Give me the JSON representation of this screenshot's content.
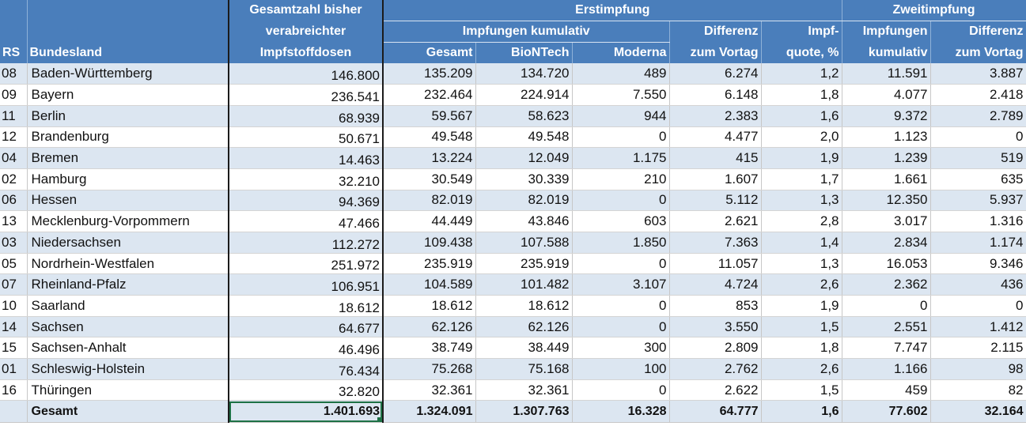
{
  "header": {
    "rs": "RS",
    "bundesland": "Bundesland",
    "total_line1": "Gesamtzahl bisher",
    "total_line2": "verabreichter",
    "total_line3": "Impfstoffdosen",
    "erst": "Erstimpfung",
    "erst_kumulativ": "Impfungen kumulativ",
    "gesamt": "Gesamt",
    "biontech": "BioNTech",
    "moderna": "Moderna",
    "diff_line1": "Differenz",
    "diff_line2": "zum Vortag",
    "quote_line1": "Impf-",
    "quote_line2": "quote, %",
    "zweit": "Zweitimpfung",
    "zweit_kum_line1": "Impfungen",
    "zweit_kum_line2": "kumulativ",
    "zweit_diff_line1": "Differenz",
    "zweit_diff_line2": "zum Vortag"
  },
  "rows": [
    {
      "rs": "08",
      "land": "Baden-Württemberg",
      "total": "146.800",
      "gesamt": "135.209",
      "biontech": "134.720",
      "moderna": "489",
      "diff": "6.274",
      "quote": "1,2",
      "zweit": "11.591",
      "zdiff": "3.887"
    },
    {
      "rs": "09",
      "land": "Bayern",
      "total": "236.541",
      "gesamt": "232.464",
      "biontech": "224.914",
      "moderna": "7.550",
      "diff": "6.148",
      "quote": "1,8",
      "zweit": "4.077",
      "zdiff": "2.418"
    },
    {
      "rs": "11",
      "land": "Berlin",
      "total": "68.939",
      "gesamt": "59.567",
      "biontech": "58.623",
      "moderna": "944",
      "diff": "2.383",
      "quote": "1,6",
      "zweit": "9.372",
      "zdiff": "2.789"
    },
    {
      "rs": "12",
      "land": "Brandenburg",
      "total": "50.671",
      "gesamt": "49.548",
      "biontech": "49.548",
      "moderna": "0",
      "diff": "4.477",
      "quote": "2,0",
      "zweit": "1.123",
      "zdiff": "0"
    },
    {
      "rs": "04",
      "land": "Bremen",
      "total": "14.463",
      "gesamt": "13.224",
      "biontech": "12.049",
      "moderna": "1.175",
      "diff": "415",
      "quote": "1,9",
      "zweit": "1.239",
      "zdiff": "519"
    },
    {
      "rs": "02",
      "land": "Hamburg",
      "total": "32.210",
      "gesamt": "30.549",
      "biontech": "30.339",
      "moderna": "210",
      "diff": "1.607",
      "quote": "1,7",
      "zweit": "1.661",
      "zdiff": "635"
    },
    {
      "rs": "06",
      "land": "Hessen",
      "total": "94.369",
      "gesamt": "82.019",
      "biontech": "82.019",
      "moderna": "0",
      "diff": "5.112",
      "quote": "1,3",
      "zweit": "12.350",
      "zdiff": "5.937"
    },
    {
      "rs": "13",
      "land": "Mecklenburg-Vorpommern",
      "total": "47.466",
      "gesamt": "44.449",
      "biontech": "43.846",
      "moderna": "603",
      "diff": "2.621",
      "quote": "2,8",
      "zweit": "3.017",
      "zdiff": "1.316"
    },
    {
      "rs": "03",
      "land": "Niedersachsen",
      "total": "112.272",
      "gesamt": "109.438",
      "biontech": "107.588",
      "moderna": "1.850",
      "diff": "7.363",
      "quote": "1,4",
      "zweit": "2.834",
      "zdiff": "1.174"
    },
    {
      "rs": "05",
      "land": "Nordrhein-Westfalen",
      "total": "251.972",
      "gesamt": "235.919",
      "biontech": "235.919",
      "moderna": "0",
      "diff": "11.057",
      "quote": "1,3",
      "zweit": "16.053",
      "zdiff": "9.346"
    },
    {
      "rs": "07",
      "land": "Rheinland-Pfalz",
      "total": "106.951",
      "gesamt": "104.589",
      "biontech": "101.482",
      "moderna": "3.107",
      "diff": "4.724",
      "quote": "2,6",
      "zweit": "2.362",
      "zdiff": "436"
    },
    {
      "rs": "10",
      "land": "Saarland",
      "total": "18.612",
      "gesamt": "18.612",
      "biontech": "18.612",
      "moderna": "0",
      "diff": "853",
      "quote": "1,9",
      "zweit": "0",
      "zdiff": "0"
    },
    {
      "rs": "14",
      "land": "Sachsen",
      "total": "64.677",
      "gesamt": "62.126",
      "biontech": "62.126",
      "moderna": "0",
      "diff": "3.550",
      "quote": "1,5",
      "zweit": "2.551",
      "zdiff": "1.412"
    },
    {
      "rs": "15",
      "land": "Sachsen-Anhalt",
      "total": "46.496",
      "gesamt": "38.749",
      "biontech": "38.449",
      "moderna": "300",
      "diff": "2.809",
      "quote": "1,8",
      "zweit": "7.747",
      "zdiff": "2.115"
    },
    {
      "rs": "01",
      "land": "Schleswig-Holstein",
      "total": "76.434",
      "gesamt": "75.268",
      "biontech": "75.168",
      "moderna": "100",
      "diff": "2.762",
      "quote": "2,6",
      "zweit": "1.166",
      "zdiff": "98"
    },
    {
      "rs": "16",
      "land": "Thüringen",
      "total": "32.820",
      "gesamt": "32.361",
      "biontech": "32.361",
      "moderna": "0",
      "diff": "2.622",
      "quote": "1,5",
      "zweit": "459",
      "zdiff": "82"
    }
  ],
  "sum": {
    "land": "Gesamt",
    "total": "1.401.693",
    "gesamt": "1.324.091",
    "biontech": "1.307.763",
    "moderna": "16.328",
    "diff": "64.777",
    "quote": "1,6",
    "zweit": "77.602",
    "zdiff": "32.164"
  },
  "colors": {
    "header": "#4a7ebb",
    "shade": "#dce6f1",
    "selection": "#1e7145"
  }
}
